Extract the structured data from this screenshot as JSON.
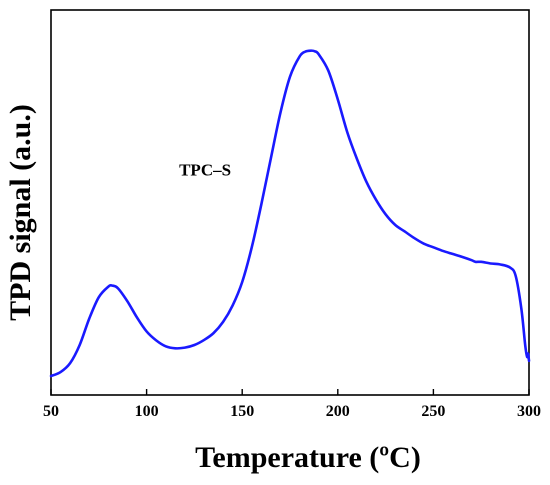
{
  "chart_data": {
    "type": "line",
    "title": "",
    "xlabel": "Temperature (ºC)",
    "ylabel": "TPD signal (a.u.)",
    "xlim": [
      50,
      300
    ],
    "ylim": [
      0,
      1
    ],
    "xticks": [
      50,
      100,
      150,
      200,
      250,
      300
    ],
    "yticks": [],
    "grid": false,
    "line_color": "#1a1aff",
    "annotations": [
      {
        "text": "TPC–S",
        "x": 117,
        "y": 0.614
      }
    ],
    "series": [
      {
        "x": [
          50,
          55,
          60,
          65,
          70,
          75,
          80,
          82,
          85,
          90,
          95,
          100,
          105,
          110,
          115,
          120,
          125,
          130,
          135,
          140,
          145,
          150,
          155,
          160,
          165,
          170,
          175,
          180,
          183,
          186,
          188,
          190,
          195,
          200,
          205,
          210,
          215,
          220,
          225,
          230,
          235,
          240,
          245,
          250,
          255,
          260,
          265,
          270,
          272,
          275,
          280,
          285,
          290,
          293,
          296,
          298,
          299,
          299.5,
          300
        ],
        "y": [
          0.006,
          0.018,
          0.045,
          0.1,
          0.18,
          0.245,
          0.277,
          0.28,
          0.272,
          0.232,
          0.183,
          0.141,
          0.114,
          0.096,
          0.09,
          0.092,
          0.1,
          0.115,
          0.136,
          0.17,
          0.22,
          0.291,
          0.396,
          0.526,
          0.666,
          0.804,
          0.913,
          0.974,
          0.989,
          0.992,
          0.99,
          0.981,
          0.932,
          0.844,
          0.744,
          0.664,
          0.594,
          0.54,
          0.496,
          0.464,
          0.444,
          0.424,
          0.407,
          0.396,
          0.385,
          0.376,
          0.367,
          0.357,
          0.352,
          0.352,
          0.347,
          0.344,
          0.335,
          0.31,
          0.21,
          0.1,
          0.064,
          0.074,
          0.052
        ]
      }
    ]
  }
}
